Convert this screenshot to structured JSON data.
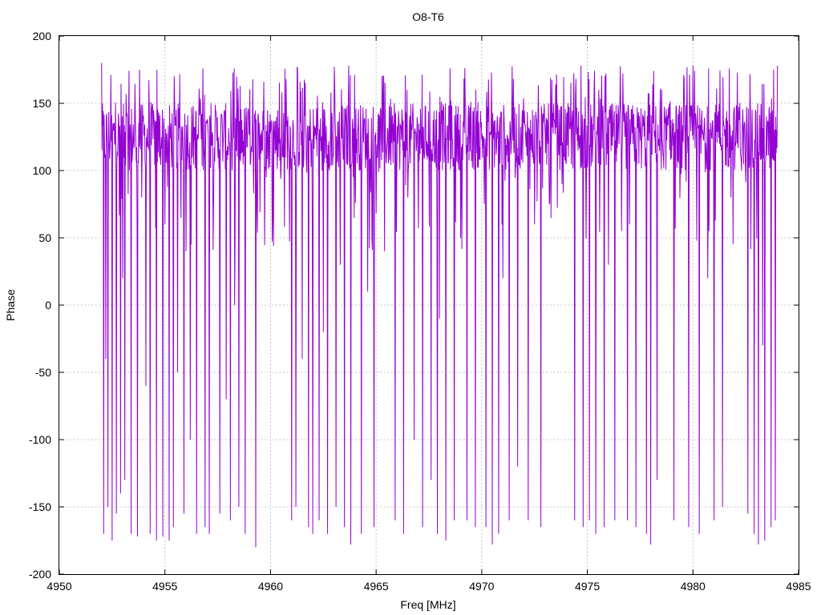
{
  "chart_data": {
    "type": "line",
    "title": "O8-T6",
    "xlabel": "Freq [MHz]",
    "ylabel": "Phase",
    "xlim": [
      4950,
      4985
    ],
    "ylim": [
      -200,
      200
    ],
    "xticks": [
      4950,
      4955,
      4960,
      4965,
      4970,
      4975,
      4980,
      4985
    ],
    "yticks": [
      -200,
      -150,
      -100,
      -50,
      0,
      50,
      100,
      150,
      200
    ],
    "xtick_labels": [
      "4950",
      "4955",
      "4960",
      "4965",
      "4970",
      "4975",
      "4980",
      "4985"
    ],
    "ytick_labels": [
      "-200",
      "-150",
      "-100",
      "-50",
      "0",
      "50",
      "100",
      "150",
      "200"
    ],
    "grid": true,
    "series": [
      {
        "color": "#9400d3",
        "x_range": [
          4952.0,
          4984.0
        ],
        "x_step": 0.02,
        "baseline_phase": 125,
        "phase_jitter": 25,
        "wrap_dips": [
          {
            "x": 4952.1,
            "phase": -170
          },
          {
            "x": 4952.3,
            "phase": -150
          },
          {
            "x": 4952.5,
            "phase": -175
          },
          {
            "x": 4952.7,
            "phase": -155
          },
          {
            "x": 4952.9,
            "phase": -140
          },
          {
            "x": 4953.1,
            "phase": -130
          },
          {
            "x": 4953.4,
            "phase": -170
          },
          {
            "x": 4953.7,
            "phase": -172
          },
          {
            "x": 4954.1,
            "phase": -60
          },
          {
            "x": 4954.3,
            "phase": -170
          },
          {
            "x": 4954.6,
            "phase": -175
          },
          {
            "x": 4954.9,
            "phase": -172
          },
          {
            "x": 4955.2,
            "phase": -175
          },
          {
            "x": 4955.4,
            "phase": -165
          },
          {
            "x": 4955.6,
            "phase": -50
          },
          {
            "x": 4955.9,
            "phase": -155
          },
          {
            "x": 4956.2,
            "phase": -100
          },
          {
            "x": 4956.5,
            "phase": -170
          },
          {
            "x": 4956.9,
            "phase": -165
          },
          {
            "x": 4957.1,
            "phase": -170
          },
          {
            "x": 4957.6,
            "phase": -155
          },
          {
            "x": 4957.9,
            "phase": -70
          },
          {
            "x": 4958.1,
            "phase": -160
          },
          {
            "x": 4958.5,
            "phase": -150
          },
          {
            "x": 4958.8,
            "phase": -170
          },
          {
            "x": 4959.3,
            "phase": -180
          },
          {
            "x": 4961.0,
            "phase": -160
          },
          {
            "x": 4961.2,
            "phase": -150
          },
          {
            "x": 4961.5,
            "phase": -40
          },
          {
            "x": 4961.8,
            "phase": -165
          },
          {
            "x": 4962.0,
            "phase": -170
          },
          {
            "x": 4962.3,
            "phase": -160
          },
          {
            "x": 4962.7,
            "phase": -170
          },
          {
            "x": 4963.1,
            "phase": -150
          },
          {
            "x": 4963.5,
            "phase": -165
          },
          {
            "x": 4963.8,
            "phase": -178
          },
          {
            "x": 4964.3,
            "phase": -170
          },
          {
            "x": 4964.9,
            "phase": -165
          },
          {
            "x": 4965.9,
            "phase": -160
          },
          {
            "x": 4966.3,
            "phase": -170
          },
          {
            "x": 4966.8,
            "phase": -100
          },
          {
            "x": 4967.2,
            "phase": -165
          },
          {
            "x": 4967.6,
            "phase": -130
          },
          {
            "x": 4967.9,
            "phase": -170
          },
          {
            "x": 4968.3,
            "phase": -175
          },
          {
            "x": 4968.7,
            "phase": -160
          },
          {
            "x": 4969.3,
            "phase": -160
          },
          {
            "x": 4969.7,
            "phase": -165
          },
          {
            "x": 4970.2,
            "phase": -165
          },
          {
            "x": 4970.5,
            "phase": -178
          },
          {
            "x": 4970.8,
            "phase": -170
          },
          {
            "x": 4971.3,
            "phase": -160
          },
          {
            "x": 4971.7,
            "phase": -120
          },
          {
            "x": 4972.2,
            "phase": -160
          },
          {
            "x": 4972.8,
            "phase": -165
          },
          {
            "x": 4974.4,
            "phase": -160
          },
          {
            "x": 4974.8,
            "phase": -165
          },
          {
            "x": 4975.1,
            "phase": -160
          },
          {
            "x": 4975.4,
            "phase": -170
          },
          {
            "x": 4975.8,
            "phase": -165
          },
          {
            "x": 4976.3,
            "phase": -160
          },
          {
            "x": 4976.9,
            "phase": -160
          },
          {
            "x": 4977.3,
            "phase": -165
          },
          {
            "x": 4977.8,
            "phase": -170
          },
          {
            "x": 4978.0,
            "phase": -178
          },
          {
            "x": 4978.3,
            "phase": -130
          },
          {
            "x": 4979.1,
            "phase": -160
          },
          {
            "x": 4979.8,
            "phase": -165
          },
          {
            "x": 4980.3,
            "phase": -170
          },
          {
            "x": 4981.0,
            "phase": -160
          },
          {
            "x": 4981.4,
            "phase": -150
          },
          {
            "x": 4982.6,
            "phase": -155
          },
          {
            "x": 4982.9,
            "phase": -170
          },
          {
            "x": 4983.1,
            "phase": -178
          },
          {
            "x": 4983.4,
            "phase": -175
          },
          {
            "x": 4983.7,
            "phase": -165
          },
          {
            "x": 4983.9,
            "phase": -160
          }
        ],
        "partial_dips": [
          {
            "x": 4952.2,
            "phase": -40
          },
          {
            "x": 4953.0,
            "phase": 20
          },
          {
            "x": 4953.9,
            "phase": 80
          },
          {
            "x": 4955.0,
            "phase": 60
          },
          {
            "x": 4956.0,
            "phase": 40
          },
          {
            "x": 4957.3,
            "phase": 70
          },
          {
            "x": 4958.3,
            "phase": 0
          },
          {
            "x": 4959.8,
            "phase": 95
          },
          {
            "x": 4960.5,
            "phase": 100
          },
          {
            "x": 4962.5,
            "phase": -20
          },
          {
            "x": 4963.3,
            "phase": 30
          },
          {
            "x": 4964.6,
            "phase": 10
          },
          {
            "x": 4965.4,
            "phase": 40
          },
          {
            "x": 4966.5,
            "phase": 80
          },
          {
            "x": 4968.0,
            "phase": -10
          },
          {
            "x": 4969.0,
            "phase": 50
          },
          {
            "x": 4971.0,
            "phase": 20
          },
          {
            "x": 4972.5,
            "phase": 60
          },
          {
            "x": 4973.2,
            "phase": 75
          },
          {
            "x": 4973.8,
            "phase": 90
          },
          {
            "x": 4976.0,
            "phase": 30
          },
          {
            "x": 4977.0,
            "phase": 60
          },
          {
            "x": 4979.4,
            "phase": 100
          },
          {
            "x": 4980.7,
            "phase": 20
          },
          {
            "x": 4981.8,
            "phase": 80
          },
          {
            "x": 4982.3,
            "phase": 100
          },
          {
            "x": 4983.3,
            "phase": -30
          }
        ],
        "peaks": [
          {
            "x": 4952.0,
            "phase": 180
          },
          {
            "x": 4953.8,
            "phase": 175
          },
          {
            "x": 4956.8,
            "phase": 176
          },
          {
            "x": 4963.7,
            "phase": 178
          },
          {
            "x": 4968.5,
            "phase": 176
          },
          {
            "x": 4974.7,
            "phase": 178
          },
          {
            "x": 4980.0,
            "phase": 178
          },
          {
            "x": 4984.0,
            "phase": 178
          }
        ]
      }
    ]
  }
}
